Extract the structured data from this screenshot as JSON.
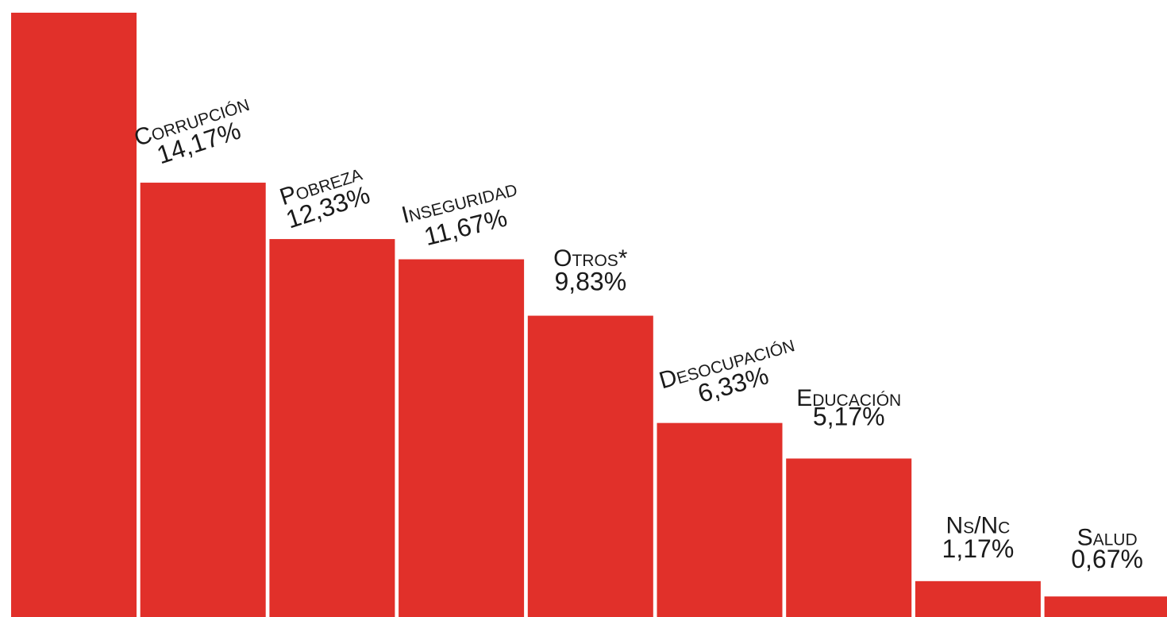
{
  "chart_data": {
    "type": "bar",
    "categories": [
      "",
      "Corrupción",
      "Pobreza",
      "Inseguridad",
      "Otros*",
      "Desocupación",
      "Educación",
      "Ns/Nc",
      "Salud"
    ],
    "values": [
      null,
      14.17,
      12.33,
      11.67,
      9.83,
      6.33,
      5.17,
      1.17,
      0.67
    ],
    "value_labels": [
      "",
      "14,17%",
      "12,33%",
      "11,67%",
      "9,83%",
      "6,33%",
      "5,17%",
      "1,17%",
      "0,67%"
    ],
    "title": "",
    "xlabel": "",
    "ylabel": "",
    "grid": false,
    "legend": "none",
    "bar_color": "#e1302a"
  }
}
